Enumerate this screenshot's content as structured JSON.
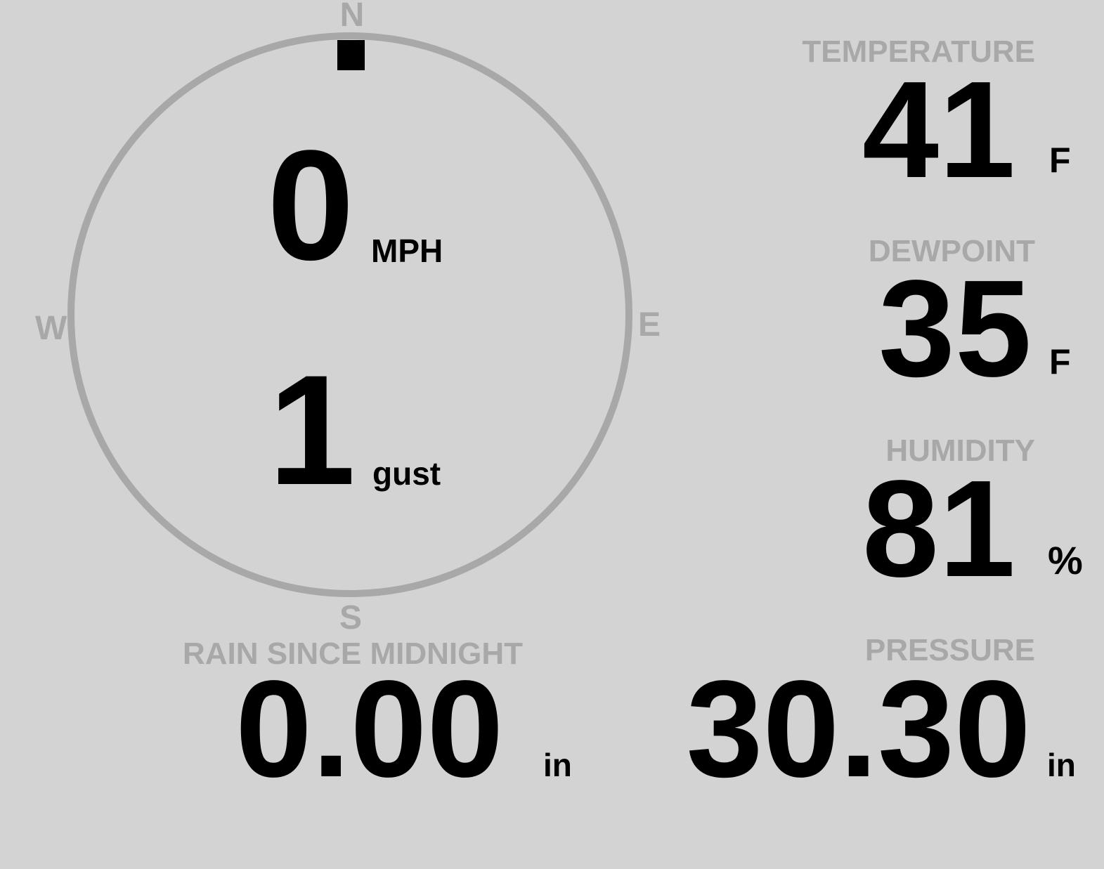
{
  "wind": {
    "speed": "0",
    "speed_unit": "MPH",
    "gust": "1",
    "gust_unit": "gust",
    "direction_deg": 0,
    "compass": {
      "n": "N",
      "e": "E",
      "s": "S",
      "w": "W"
    }
  },
  "temperature": {
    "label": "TEMPERATURE",
    "value": "41",
    "unit": "F"
  },
  "dewpoint": {
    "label": "DEWPOINT",
    "value": "35",
    "unit": "F"
  },
  "humidity": {
    "label": "HUMIDITY",
    "value": "81",
    "unit": "%"
  },
  "rain": {
    "label": "RAIN SINCE MIDNIGHT",
    "value": "0.00",
    "unit": "in"
  },
  "pressure": {
    "label": "PRESSURE",
    "value": "30.30",
    "unit": "in"
  },
  "colors": {
    "background": "#d3d3d3",
    "label": "#a8a8a8",
    "value": "#000000",
    "dial": "#a8a8a8"
  }
}
